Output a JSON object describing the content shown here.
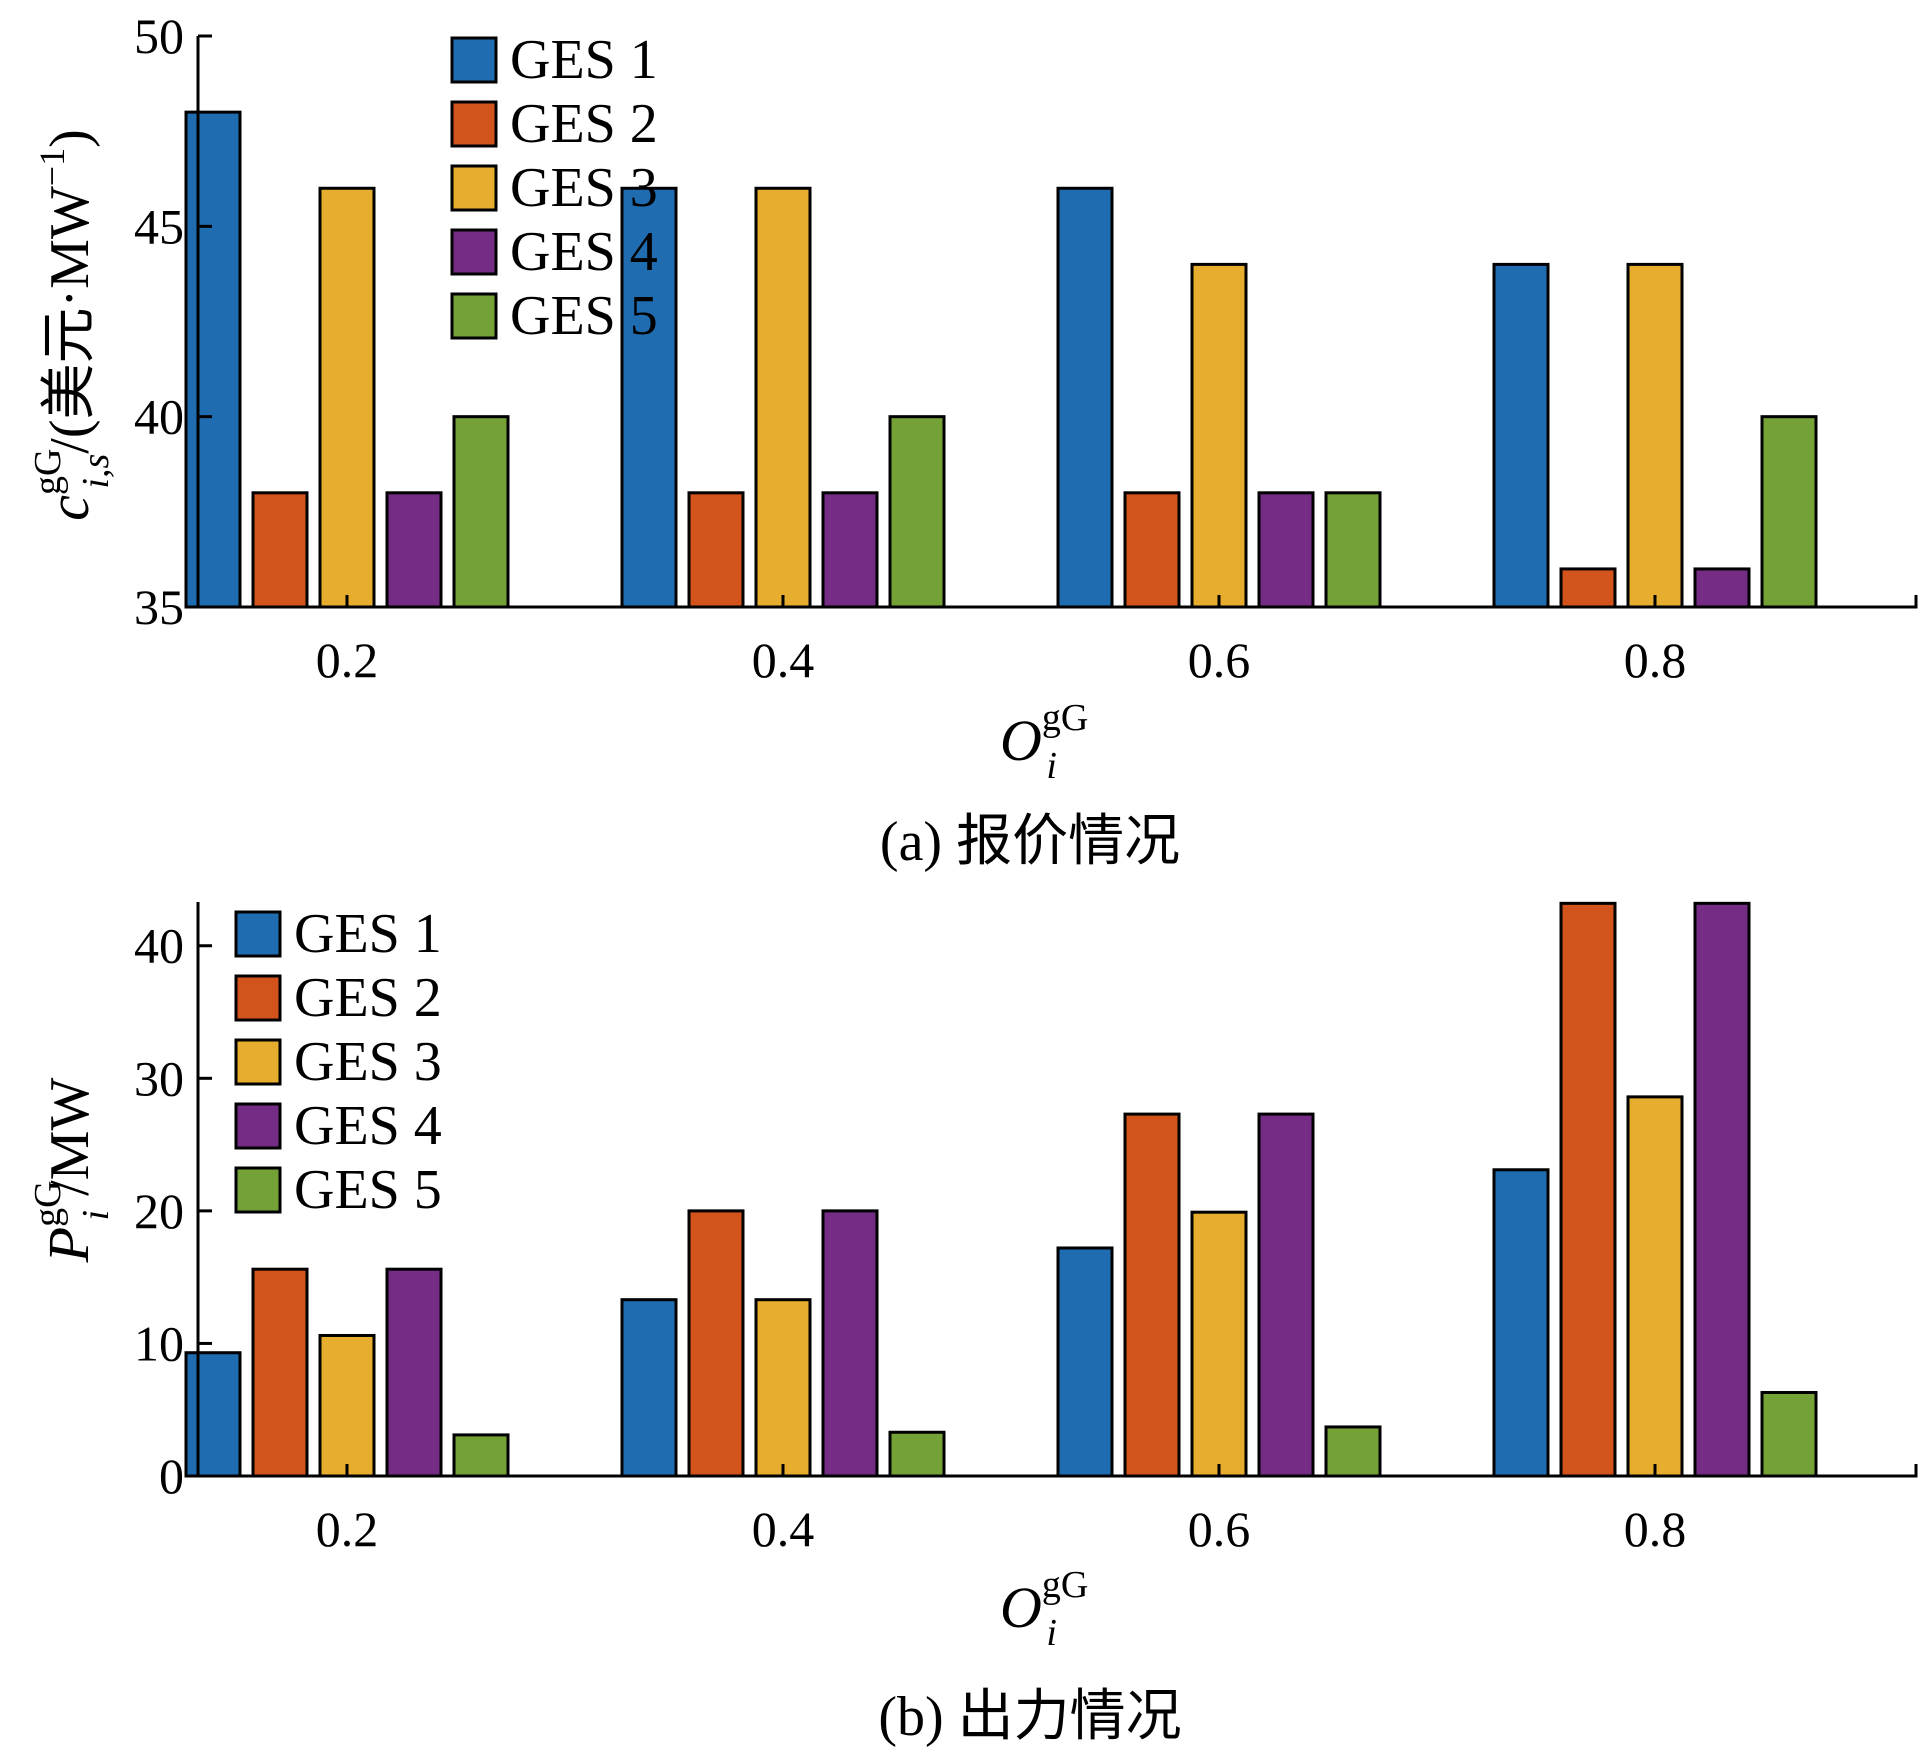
{
  "chart_data": [
    {
      "type": "bar",
      "categories": [
        "0.2",
        "0.4",
        "0.6",
        "0.8"
      ],
      "series": [
        {
          "name": "GES 1",
          "color": "#1f6cb0",
          "values": [
            48,
            46,
            46,
            44
          ]
        },
        {
          "name": "GES 2",
          "color": "#d2541c",
          "values": [
            38,
            38,
            38,
            36
          ]
        },
        {
          "name": "GES 3",
          "color": "#e6ad2e",
          "values": [
            46,
            46,
            44,
            44
          ]
        },
        {
          "name": "GES 4",
          "color": "#742c85",
          "values": [
            38,
            38,
            38,
            36
          ]
        },
        {
          "name": "GES 5",
          "color": "#74a236",
          "values": [
            40,
            40,
            38,
            40
          ]
        }
      ],
      "ylim": [
        35,
        50
      ],
      "yticks": [
        "35",
        "40",
        "45",
        "50"
      ],
      "ylabel": {
        "var": "c",
        "sup": "gG",
        "sub": "i,s",
        "unit_pre": "/(美元·MW",
        "unit_exp": "−1",
        "unit_post": ")"
      },
      "xlabel": {
        "var": "O",
        "sup": "gG",
        "sub": "i"
      },
      "caption": "(a)  报价情况",
      "legend": "top-left"
    },
    {
      "type": "bar",
      "categories": [
        "0.2",
        "0.4",
        "0.6",
        "0.8"
      ],
      "series": [
        {
          "name": "GES 1",
          "color": "#1f6cb0",
          "values": [
            9.3,
            13.3,
            17.2,
            23.1
          ]
        },
        {
          "name": "GES 2",
          "color": "#d2541c",
          "values": [
            15.6,
            20.0,
            27.3,
            43.2
          ]
        },
        {
          "name": "GES 3",
          "color": "#e6ad2e",
          "values": [
            10.6,
            13.3,
            19.9,
            28.6
          ]
        },
        {
          "name": "GES 4",
          "color": "#742c85",
          "values": [
            15.6,
            20.0,
            27.3,
            43.2
          ]
        },
        {
          "name": "GES 5",
          "color": "#74a236",
          "values": [
            3.1,
            3.3,
            3.7,
            6.3
          ]
        }
      ],
      "ylim": [
        0,
        43.3
      ],
      "yticks": [
        "0",
        "10",
        "20",
        "30",
        "40"
      ],
      "ylabel": {
        "var": "P",
        "sup": "gG",
        "sub": "i",
        "unit_pre": "/MW",
        "unit_exp": "",
        "unit_post": ""
      },
      "xlabel": {
        "var": "O",
        "sup": "gG",
        "sub": "i"
      },
      "caption": "(b)  出力情况",
      "legend": "top-left"
    }
  ]
}
